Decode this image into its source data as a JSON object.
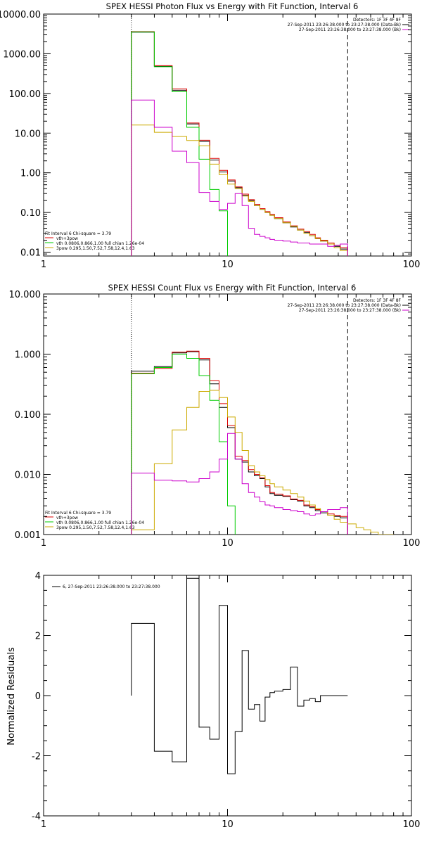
{
  "chart_data": [
    {
      "type": "line",
      "title": "SPEX HESSI Photon Flux vs Energy with Fit Function, Interval 6",
      "xscale": "log",
      "yscale": "log",
      "xlim": [
        1,
        100
      ],
      "ylim": [
        0.008,
        10000
      ],
      "x_ticks": [
        1,
        10,
        100
      ],
      "x_tick_labels": [
        "1",
        "10",
        "100"
      ],
      "y_ticks": [
        0.01,
        0.1,
        1,
        10,
        100,
        1000,
        10000
      ],
      "y_tick_labels": [
        "0.01",
        "0.10",
        "1.00",
        "10.00",
        "100.00",
        "1000.00",
        "10000.00"
      ],
      "vlines": [
        {
          "x": 3,
          "style": "dotted"
        },
        {
          "x": 45,
          "style": "dashed"
        }
      ],
      "legend_top_right": [
        "Detectors: 1F 3F 4F 8F",
        "27-Sep-2011 23:26:38.000 to 23:27:38.000 (Data-Bk)",
        "27-Sep-2011 23:26:38.000 to 23:27:38.000 (Bk)"
      ],
      "legend_bottom_left": [
        "Fit Interval 6   Chi-square = 3.79",
        "vth+3pow",
        "vth 0.0806,0.866,1.00  full chian 1.26e-04",
        "3pow 0.295,1.50,7.52,7.58,12.4,1.63"
      ],
      "series": [
        {
          "color": "#000000",
          "edges": [
            3,
            4,
            5,
            6,
            7,
            8,
            9,
            10,
            11,
            12,
            13,
            14,
            15,
            16,
            17,
            18,
            20,
            22,
            24,
            26,
            28,
            30,
            32,
            35,
            38,
            41,
            45
          ],
          "values": [
            3500,
            480,
            120,
            17,
            6.2,
            2.1,
            1.05,
            0.62,
            0.42,
            0.27,
            0.2,
            0.15,
            0.12,
            0.1,
            0.085,
            0.07,
            0.055,
            0.043,
            0.036,
            0.031,
            0.026,
            0.022,
            0.019,
            0.016,
            0.014,
            0.012
          ]
        },
        {
          "color": "#dd0000",
          "edges": [
            3,
            4,
            5,
            6,
            7,
            8,
            9,
            10,
            11,
            12,
            13,
            14,
            15,
            16,
            17,
            18,
            20,
            22,
            24,
            26,
            28,
            30,
            32,
            35,
            38,
            41,
            45
          ],
          "values": [
            3600,
            500,
            130,
            18,
            6.6,
            2.3,
            1.15,
            0.66,
            0.44,
            0.29,
            0.21,
            0.16,
            0.125,
            0.105,
            0.09,
            0.074,
            0.058,
            0.046,
            0.038,
            0.033,
            0.028,
            0.023,
            0.02,
            0.017,
            0.015,
            0.013
          ]
        },
        {
          "color": "#00cc00",
          "edges": [
            3,
            4,
            5,
            6,
            7,
            8,
            9,
            10
          ],
          "values": [
            3550,
            470,
            110,
            14,
            2.2,
            0.38,
            0.11
          ]
        },
        {
          "color": "#ccaa00",
          "edges": [
            3,
            4,
            5,
            6,
            7,
            8,
            9,
            10,
            11,
            12,
            13,
            14,
            15,
            16,
            17,
            18,
            20,
            22,
            24,
            26,
            28,
            30,
            32,
            35,
            38,
            41,
            45
          ],
          "values": [
            16,
            10.5,
            8.2,
            6.5,
            4.8,
            1.65,
            0.9,
            0.52,
            0.4,
            0.26,
            0.19,
            0.15,
            0.12,
            0.1,
            0.085,
            0.07,
            0.055,
            0.045,
            0.036,
            0.03,
            0.026,
            0.022,
            0.019,
            0.016,
            0.013,
            0.011
          ]
        },
        {
          "color": "#cc00cc",
          "edges": [
            3,
            4,
            5,
            6,
            7,
            8,
            9,
            10,
            11,
            12,
            13,
            14,
            15,
            16,
            17,
            18,
            20,
            22,
            24,
            26,
            28,
            30,
            32,
            35,
            38,
            41,
            45
          ],
          "values": [
            68,
            14,
            3.5,
            1.8,
            0.32,
            0.19,
            0.12,
            0.17,
            0.3,
            0.15,
            0.04,
            0.028,
            0.025,
            0.023,
            0.021,
            0.02,
            0.019,
            0.018,
            0.017,
            0.017,
            0.016,
            0.016,
            0.016,
            0.014,
            0.015,
            0.016
          ]
        }
      ]
    },
    {
      "type": "line",
      "title": "SPEX HESSI Count Flux vs Energy with Fit Function, Interval 6",
      "xscale": "log",
      "yscale": "log",
      "xlim": [
        1,
        100
      ],
      "ylim": [
        0.001,
        10
      ],
      "x_ticks": [
        1,
        10,
        100
      ],
      "x_tick_labels": [
        "1",
        "10",
        "100"
      ],
      "y_ticks": [
        0.001,
        0.01,
        0.1,
        1,
        10
      ],
      "y_tick_labels": [
        "0.001",
        "0.010",
        "0.100",
        "1.000",
        "10.000"
      ],
      "vlines": [
        {
          "x": 3,
          "style": "dotted"
        },
        {
          "x": 45,
          "style": "dashed"
        }
      ],
      "legend_top_right": [
        "Detectors: 1F 3F 4F 8F",
        "27-Sep-2011 23:26:38.000 to 23:27:38.000 (Data-Bk)",
        "27-Sep-2011 23:26:38.000 to 23:27:38.000 (Bk)"
      ],
      "legend_bottom_left": [
        "Fit Interval 6   Chi-square = 3.79",
        "vth+3pow",
        "vth 0.0806,0.866,1.00  full chian 1.26e-04",
        "3pow 0.295,1.50,7.52,7.58,12.4,1.63"
      ],
      "series": [
        {
          "color": "#000000",
          "edges": [
            3,
            4,
            5,
            6,
            7,
            8,
            9,
            10,
            11,
            12,
            13,
            14,
            15,
            16,
            17,
            18,
            20,
            22,
            24,
            26,
            28,
            30,
            32,
            35,
            38,
            41,
            45
          ],
          "values": [
            0.52,
            0.62,
            1.05,
            1.1,
            0.8,
            0.32,
            0.13,
            0.06,
            0.018,
            0.016,
            0.011,
            0.0095,
            0.0085,
            0.0062,
            0.0048,
            0.0045,
            0.0043,
            0.0038,
            0.0036,
            0.003,
            0.0028,
            0.0025,
            0.0023,
            0.0021,
            0.002,
            0.0019
          ]
        },
        {
          "color": "#dd0000",
          "edges": [
            3,
            4,
            5,
            6,
            7,
            8,
            9,
            10,
            11,
            12,
            13,
            14,
            15,
            16,
            17,
            18,
            20,
            22,
            24,
            26,
            28,
            30,
            32,
            35,
            38,
            41,
            45
          ],
          "values": [
            0.48,
            0.58,
            1.08,
            1.12,
            0.85,
            0.36,
            0.15,
            0.065,
            0.02,
            0.017,
            0.012,
            0.01,
            0.0088,
            0.0065,
            0.005,
            0.0047,
            0.0044,
            0.0039,
            0.0037,
            0.0031,
            0.0029,
            0.0026,
            0.0024,
            0.0022,
            0.0021,
            0.002
          ]
        },
        {
          "color": "#00cc00",
          "edges": [
            3,
            4,
            5,
            6,
            7,
            8,
            9,
            10,
            11
          ],
          "values": [
            0.47,
            0.6,
            1.0,
            0.85,
            0.44,
            0.17,
            0.035,
            0.003
          ]
        },
        {
          "color": "#ccaa00",
          "edges": [
            3,
            4,
            5,
            6,
            7,
            8,
            9,
            10,
            11,
            12,
            13,
            14,
            15,
            16,
            17,
            18,
            20,
            22,
            24,
            26,
            28,
            30,
            32,
            35,
            38,
            41,
            45,
            50,
            55,
            60,
            66,
            72,
            80
          ],
          "values": [
            0.0012,
            0.015,
            0.055,
            0.13,
            0.24,
            0.25,
            0.19,
            0.09,
            0.05,
            0.025,
            0.014,
            0.011,
            0.0095,
            0.0082,
            0.007,
            0.0062,
            0.0055,
            0.0048,
            0.0042,
            0.0036,
            0.0031,
            0.0027,
            0.0024,
            0.0021,
            0.0018,
            0.0016,
            0.0015,
            0.0013,
            0.0012,
            0.0011,
            0.001,
            0.00095
          ]
        },
        {
          "color": "#cc00cc",
          "edges": [
            3,
            4,
            5,
            6,
            7,
            8,
            9,
            10,
            11,
            12,
            13,
            14,
            15,
            16,
            17,
            18,
            20,
            22,
            24,
            26,
            28,
            30,
            32,
            35,
            38,
            41,
            45
          ],
          "values": [
            0.0105,
            0.008,
            0.0078,
            0.0075,
            0.0085,
            0.011,
            0.018,
            0.048,
            0.018,
            0.007,
            0.005,
            0.0042,
            0.0035,
            0.0031,
            0.003,
            0.0028,
            0.0026,
            0.0025,
            0.0024,
            0.0022,
            0.0021,
            0.0022,
            0.0024,
            0.0026,
            0.0026,
            0.0028
          ]
        }
      ]
    },
    {
      "type": "line",
      "title": "",
      "xscale": "log",
      "yscale": "linear",
      "xlim": [
        1,
        100
      ],
      "ylim": [
        -4,
        4
      ],
      "x_ticks": [
        1,
        10,
        100
      ],
      "x_tick_labels": [
        "1",
        "10",
        "100"
      ],
      "y_ticks": [
        -4,
        -2,
        0,
        2,
        4
      ],
      "y_tick_labels": [
        "-4",
        "-2",
        "0",
        "2",
        "4"
      ],
      "ylabel": "Normalized Residuals",
      "legend_top_left": [
        "6, 27-Sep-2011 23:26:38.000 to 23:27:38.000"
      ],
      "series": [
        {
          "color": "#000000",
          "edges": [
            3,
            4,
            5,
            6,
            7,
            8,
            9,
            10,
            11,
            12,
            13,
            14,
            15,
            16,
            17,
            18,
            20,
            22,
            24,
            26,
            28,
            30,
            32,
            35,
            38,
            41,
            45
          ],
          "values": [
            2.4,
            -1.85,
            -2.2,
            3.9,
            -1.05,
            -1.45,
            3.0,
            -2.6,
            -1.2,
            1.5,
            -0.45,
            -0.3,
            -0.85,
            -0.05,
            0.1,
            0.15,
            0.2,
            0.95,
            -0.35,
            -0.15,
            -0.1,
            -0.2,
            0,
            0,
            0,
            0
          ],
          "values_note": ""
        }
      ]
    }
  ]
}
